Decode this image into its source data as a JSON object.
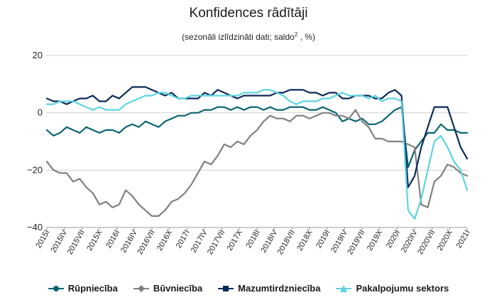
{
  "chart_data": {
    "type": "line",
    "title": "Konfidences rādītāji",
    "subtitle_main": "(sezonāli izlīdzināti dati; saldo",
    "subtitle_sup": "2",
    "subtitle_tail": " , %)",
    "ylim": [
      -40,
      20
    ],
    "yticks": [
      "20",
      "0",
      "−20",
      "−40"
    ],
    "ytick_values": [
      20,
      0,
      -20,
      -40
    ],
    "x_tick_labels": [
      "2015I",
      "2015IV",
      "2015VII",
      "2015X",
      "2016I",
      "2016IV",
      "2016VII",
      "2016X",
      "2017I",
      "2017IV",
      "2017VII",
      "2017X",
      "2018I",
      "2018IV",
      "2018VII",
      "2018X",
      "2019I",
      "2019IV",
      "2019VII",
      "2019X",
      "2020I",
      "2020IV",
      "2020VII",
      "2020X",
      "2021I"
    ],
    "grid": "horizontal",
    "legend_position": "bottom",
    "series": [
      {
        "name": "Rūpniecība",
        "color": "#0b6470",
        "marker": "circle",
        "values": [
          -6,
          -8,
          -7,
          -5,
          -6,
          -7,
          -5,
          -6,
          -7,
          -6,
          -6,
          -7,
          -5,
          -4,
          -5,
          -3,
          -4,
          -5,
          -3,
          -2,
          -1,
          -1,
          0,
          0,
          1,
          1,
          2,
          2,
          1,
          2,
          1,
          2,
          2,
          1,
          2,
          1,
          1,
          2,
          2,
          2,
          1,
          1,
          2,
          1,
          0,
          -3,
          -2,
          -3,
          -2,
          -4,
          -4,
          -3,
          -1,
          1,
          2,
          -19,
          -13,
          -10,
          -7,
          -7,
          -4,
          -6,
          -6,
          -7,
          -7
        ]
      },
      {
        "name": "Būvniecība",
        "color": "#808080",
        "marker": "diamond",
        "values": [
          -17,
          -20,
          -21,
          -21,
          -24,
          -23,
          -26,
          -28,
          -32,
          -31,
          -33,
          -32,
          -27,
          -29,
          -32,
          -34,
          -36,
          -36,
          -34,
          -31,
          -30,
          -28,
          -25,
          -21,
          -17,
          -18,
          -15,
          -11,
          -12,
          -10,
          -11,
          -8,
          -6,
          -3,
          -1,
          -2,
          -2,
          -3,
          -1,
          -1,
          -2,
          -1,
          0,
          0,
          -1,
          -1,
          -2,
          1,
          -3,
          -5,
          -9,
          -9,
          -10,
          -10,
          -10,
          -11,
          -12,
          -32,
          -33,
          -24,
          -22,
          -18,
          -19,
          -21,
          -22
        ]
      },
      {
        "name": "Mazumtirdzniecība",
        "color": "#0c2a5a",
        "marker": "square",
        "values": [
          5,
          4,
          4,
          3,
          4,
          5,
          5,
          6,
          4,
          4,
          6,
          5,
          7,
          9,
          9,
          9,
          8,
          7,
          6,
          7,
          5,
          5,
          5,
          5,
          7,
          6,
          8,
          7,
          6,
          5,
          6,
          6,
          6,
          6,
          6,
          7,
          7,
          8,
          8,
          8,
          7,
          7,
          6,
          7,
          7,
          5,
          5,
          6,
          6,
          6,
          5,
          5,
          7,
          8,
          6,
          -26,
          -22,
          -12,
          -5,
          2,
          2,
          2,
          -5,
          -12,
          -16
        ]
      },
      {
        "name": "Pakalpojumu sektors",
        "color": "#5dd4e0",
        "marker": "triangle",
        "values": [
          3,
          3,
          4,
          4,
          4,
          3,
          2,
          1,
          2,
          1,
          1,
          1,
          3,
          4,
          5,
          6,
          6,
          7,
          7,
          6,
          5,
          5,
          6,
          6,
          6,
          6,
          6,
          6,
          6,
          6,
          7,
          7,
          7,
          8,
          8,
          7,
          6,
          4,
          3,
          4,
          4,
          4,
          5,
          5,
          6,
          7,
          6,
          6,
          6,
          5,
          6,
          4,
          5,
          5,
          4,
          -34,
          -37,
          -30,
          -20,
          -10,
          -8,
          -12,
          -17,
          -20,
          -27
        ]
      }
    ]
  }
}
